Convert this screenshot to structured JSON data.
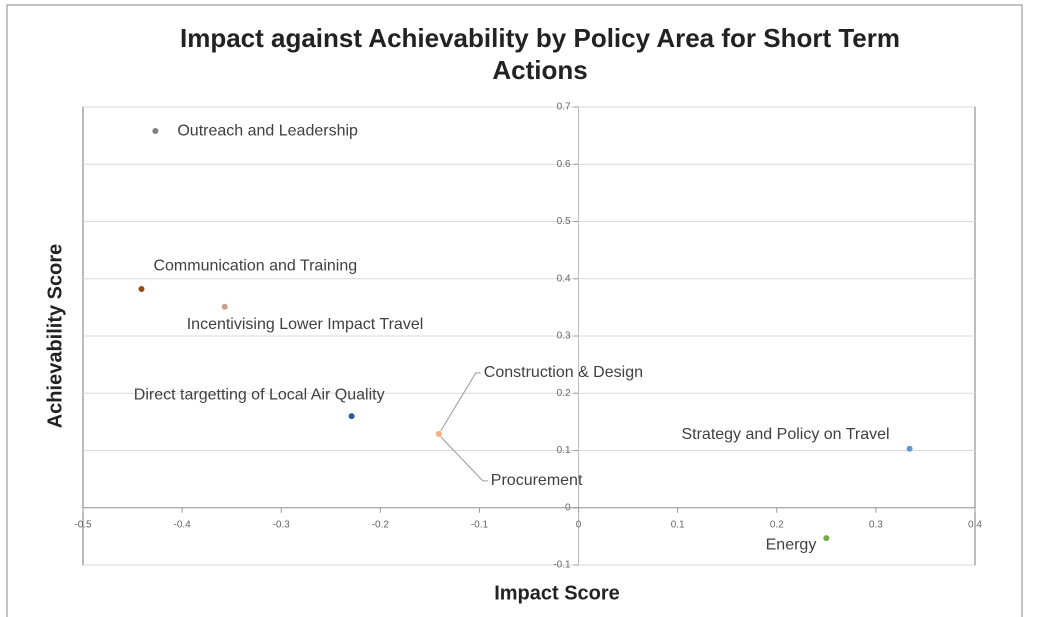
{
  "chart_data": {
    "type": "scatter",
    "title": "Impact against Achievability by Policy Area for Short Term Actions",
    "x_label": "Impact Score",
    "y_label": "Achievability Score",
    "xlim": [
      -0.5,
      0.4
    ],
    "xticks": [
      -0.5,
      -0.4,
      -0.3,
      -0.2,
      -0.1,
      0,
      0.1,
      0.2,
      0.3,
      0.4
    ],
    "ylim": [
      -0.1,
      0.7
    ],
    "yticks": [
      -0.1,
      0,
      0.1,
      0.2,
      0.3,
      0.4,
      0.5,
      0.6,
      0.7
    ],
    "grid": true,
    "series": [
      {
        "name": "Outreach and Leadership",
        "color": "#7f7f7f",
        "x": [
          -0.427
        ],
        "values": [
          0.658
        ]
      },
      {
        "name": "Communication and Training",
        "color": "#9e480e",
        "x": [
          -0.441
        ],
        "values": [
          0.382
        ]
      },
      {
        "name": "Incentivising Lower Impact Travel",
        "color": "#c9a08c",
        "x": [
          -0.357
        ],
        "values": [
          0.351
        ]
      },
      {
        "name": "Direct targetting of Local Air Quality",
        "color": "#255e91",
        "x": [
          -0.229
        ],
        "values": [
          0.16
        ]
      },
      {
        "name": "Construction & Design",
        "color": "#ffc000",
        "x": [
          -0.141
        ],
        "values": [
          0.129
        ]
      },
      {
        "name": "Procurement",
        "color": "#f4b183",
        "x": [
          -0.141
        ],
        "values": [
          0.129
        ]
      },
      {
        "name": "Strategy and Policy on Travel",
        "color": "#5b9bd5",
        "x": [
          0.334
        ],
        "values": [
          0.103
        ]
      },
      {
        "name": "Energy",
        "color": "#70ad47",
        "x": [
          0.25
        ],
        "values": [
          -0.053
        ]
      }
    ]
  }
}
